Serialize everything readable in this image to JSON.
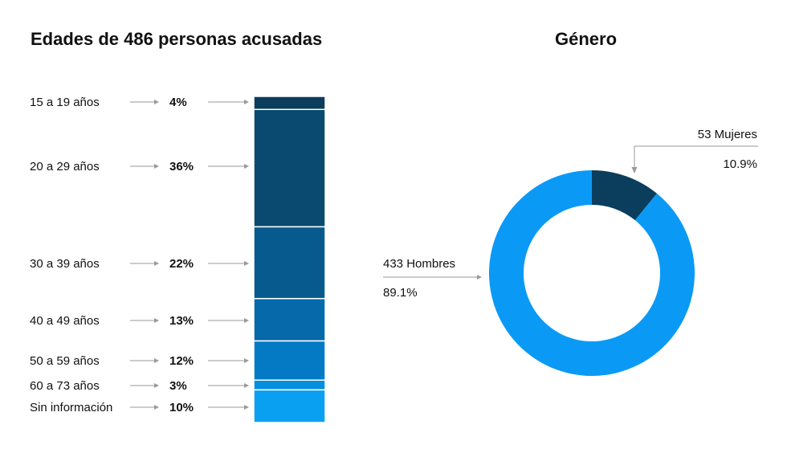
{
  "chart_data": [
    {
      "type": "bar",
      "subtype": "stacked-100",
      "title": "Edades de 486 personas acusadas",
      "categories": [
        "15 a 19 años",
        "20 a 29 años",
        "30 a 39 años",
        "40 a 49 años",
        "50 a 59 años",
        "60 a 73 años",
        "Sin información"
      ],
      "values": [
        4,
        36,
        22,
        13,
        12,
        3,
        10
      ],
      "value_labels": [
        "4%",
        "36%",
        "22%",
        "13%",
        "12%",
        "3%",
        "10%"
      ],
      "colors": [
        "#0b3d5c",
        "#0a4a70",
        "#065a8e",
        "#0569aa",
        "#0479c4",
        "#058ee0",
        "#0aa0f2"
      ]
    },
    {
      "type": "pie",
      "subtype": "donut",
      "title": "Género",
      "slices": [
        {
          "name": "Mujeres",
          "label": "53 Mujeres",
          "count": 53,
          "percent": 10.9,
          "percent_label": "10.9%",
          "color": "#0b3d5c"
        },
        {
          "name": "Hombres",
          "label": "433 Hombres",
          "count": 433,
          "percent": 89.1,
          "percent_label": "89.1%",
          "color": "#0a9af5"
        }
      ]
    }
  ]
}
